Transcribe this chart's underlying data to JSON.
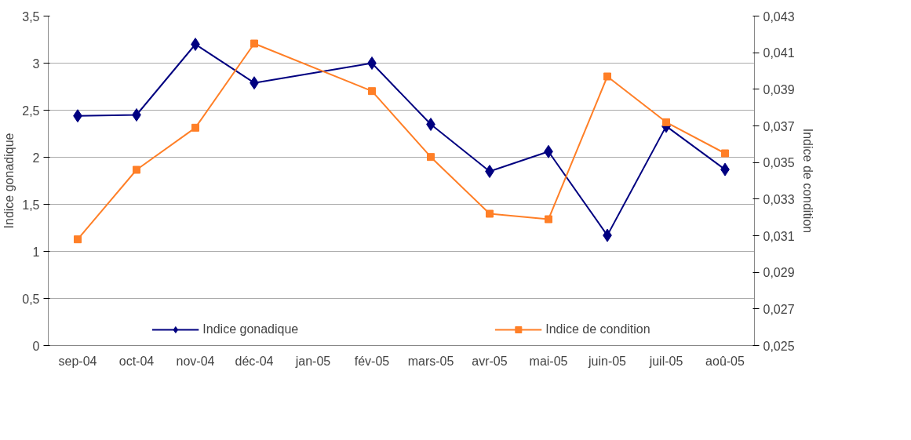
{
  "chart_data": {
    "type": "line",
    "ylabel": "Indice gonadique",
    "y2label": "Indice de condition",
    "categories": [
      "sep-04",
      "oct-04",
      "nov-04",
      "déc-04",
      "jan-05",
      "fév-05",
      "mars-05",
      "avr-05",
      "mai-05",
      "juin-05",
      "juil-05",
      "aoû-05"
    ],
    "series": [
      {
        "name": "Indice gonadique",
        "color": "#000080",
        "marker": "diamond",
        "values": [
          2.44,
          2.45,
          3.2,
          2.79,
          null,
          3.0,
          2.35,
          1.85,
          2.06,
          1.17,
          2.33,
          1.87
        ]
      },
      {
        "name": "Indice de condition",
        "color": "#ff7f27",
        "marker": "square",
        "axis": "y2",
        "values": [
          0.0308,
          0.0346,
          0.0369,
          0.0415,
          null,
          0.0389,
          0.0353,
          0.0322,
          0.0319,
          0.0397,
          0.0372,
          0.0355
        ]
      }
    ],
    "ylim": [
      0,
      3.5
    ],
    "yticks": [
      0,
      {
        "value": 0.5,
        "label": "0,5"
      },
      1,
      {
        "value": 1.5,
        "label": "1,5"
      },
      2,
      {
        "value": 2.5,
        "label": "2,5"
      },
      3,
      {
        "value": 3.5,
        "label": "3,5"
      }
    ],
    "y2lim": [
      0.025,
      0.043
    ],
    "y2ticks": [
      {
        "value": 0.025,
        "label": "0,025"
      },
      {
        "value": 0.027,
        "label": "0,027"
      },
      {
        "value": 0.029,
        "label": "0,029"
      },
      {
        "value": 0.031,
        "label": "0,031"
      },
      {
        "value": 0.033,
        "label": "0,033"
      },
      {
        "value": 0.035,
        "label": "0,035"
      },
      {
        "value": 0.037,
        "label": "0,037"
      },
      {
        "value": 0.039,
        "label": "0,039"
      },
      {
        "value": 0.041,
        "label": "0,041"
      },
      {
        "value": 0.043,
        "label": "0,043"
      }
    ],
    "grid": "y",
    "legend": "bottom"
  }
}
